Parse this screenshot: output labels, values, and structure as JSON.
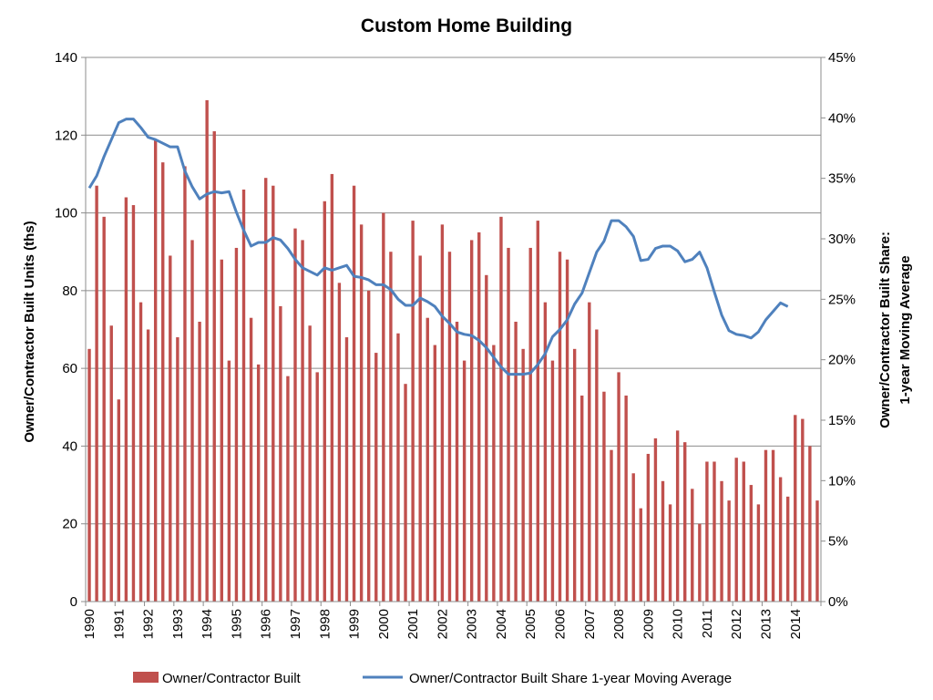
{
  "chart_data": {
    "type": "bar",
    "title": "Custom Home Building",
    "ylabel": "Owner/Contractor Built Units (ths)",
    "y2label_line1": "Owner/Contractor Built Share:",
    "y2label_line2": "1-year Moving Average",
    "ylim": [
      0,
      140
    ],
    "y2lim": [
      0,
      45
    ],
    "yticks": [
      "0",
      "20",
      "40",
      "60",
      "80",
      "100",
      "120",
      "140"
    ],
    "y2ticks": [
      "0%",
      "5%",
      "10%",
      "15%",
      "20%",
      "25%",
      "30%",
      "35%",
      "40%",
      "45%"
    ],
    "years": [
      "1990",
      "1991",
      "1992",
      "1993",
      "1994",
      "1995",
      "1996",
      "1997",
      "1998",
      "1999",
      "2000",
      "2001",
      "2002",
      "2003",
      "2004",
      "2005",
      "2006",
      "2007",
      "2008",
      "2009",
      "2010",
      "2011",
      "2012",
      "2013",
      "2014"
    ],
    "grid": "horizontal",
    "legend_position": "bottom",
    "series": [
      {
        "name": "Owner/Contractor Built",
        "type": "bar",
        "color": "#C0504D",
        "values": [
          65,
          107,
          99,
          71,
          52,
          104,
          102,
          77,
          70,
          119,
          113,
          89,
          68,
          112,
          93,
          72,
          129,
          121,
          88,
          62,
          91,
          106,
          73,
          61,
          109,
          107,
          76,
          58,
          96,
          93,
          71,
          59,
          103,
          110,
          82,
          68,
          107,
          97,
          80,
          64,
          100,
          90,
          69,
          56,
          98,
          89,
          73,
          66,
          97,
          90,
          72,
          62,
          93,
          95,
          84,
          66,
          99,
          91,
          72,
          65,
          91,
          98,
          77,
          62,
          90,
          88,
          65,
          53,
          77,
          70,
          54,
          39,
          59,
          53,
          33,
          24,
          38,
          42,
          31,
          25,
          44,
          41,
          29,
          20,
          36,
          36,
          31,
          26,
          37,
          36,
          30,
          25,
          39,
          39,
          32,
          27,
          48,
          47,
          40,
          26
        ]
      },
      {
        "name": "Owner/Contractor Built Share 1-year Moving Average",
        "type": "line",
        "color": "#4F81BD",
        "values": [
          34.2,
          35.2,
          36.8,
          38.2,
          39.6,
          39.9,
          39.9,
          39.2,
          38.4,
          38.2,
          37.9,
          37.6,
          37.6,
          35.6,
          34.3,
          33.3,
          33.7,
          33.9,
          33.8,
          33.9,
          32.2,
          30.7,
          29.4,
          29.7,
          29.7,
          30.1,
          29.9,
          29.2,
          28.3,
          27.6,
          27.3,
          27.0,
          27.6,
          27.4,
          27.6,
          27.8,
          26.9,
          26.8,
          26.6,
          26.2,
          26.2,
          25.8,
          25.0,
          24.5,
          24.5,
          25.1,
          24.8,
          24.4,
          23.6,
          23.0,
          22.3,
          22.1,
          22.0,
          21.6,
          21.0,
          20.2,
          19.4,
          18.8,
          18.8,
          18.8,
          18.9,
          19.6,
          20.5,
          21.9,
          22.5,
          23.3,
          24.6,
          25.5,
          27.2,
          28.9,
          29.8,
          31.5,
          31.5,
          31.0,
          30.2,
          28.2,
          28.3,
          29.2,
          29.4,
          29.4,
          29.0,
          28.1,
          28.3,
          28.9,
          27.6,
          25.6,
          23.7,
          22.4,
          22.1,
          22.0,
          21.8,
          22.3,
          23.3,
          24.0,
          24.7,
          24.4
        ]
      }
    ]
  }
}
